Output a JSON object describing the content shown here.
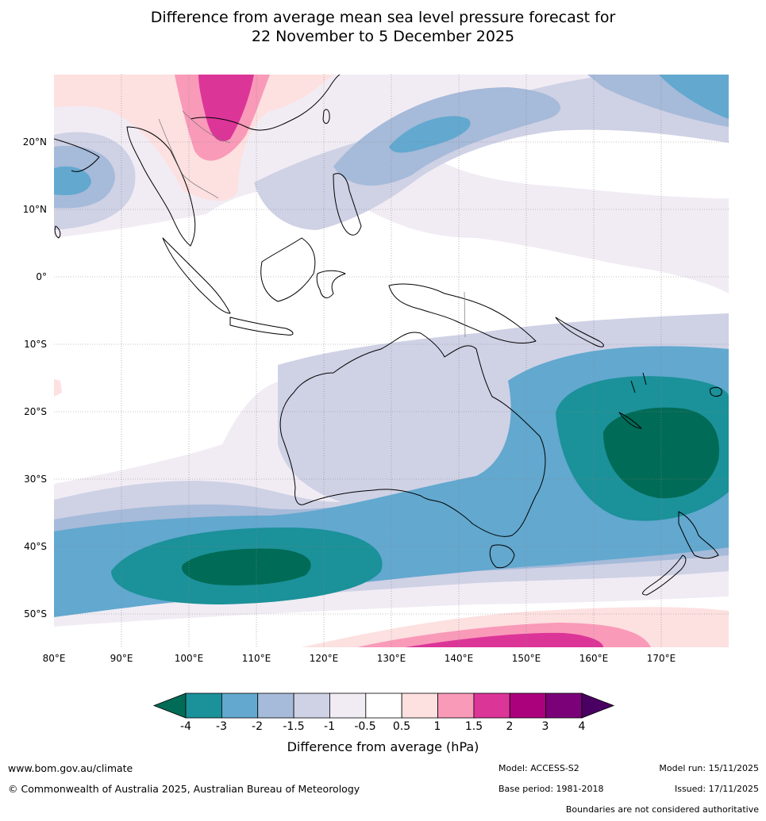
{
  "title": {
    "line1": "Difference from average mean sea level pressure forecast for",
    "line2": "22 November to 5 December 2025"
  },
  "map": {
    "region": "Indian Ocean, Maritime Continent, Australia and South-West Pacific",
    "lat_ticks": [
      "20°N",
      "10°N",
      "0°",
      "10°S",
      "20°S",
      "30°S",
      "40°S",
      "50°S"
    ],
    "lon_ticks": [
      "80°E",
      "90°E",
      "100°E",
      "110°E",
      "120°E",
      "130°E",
      "140°E",
      "150°E",
      "160°E",
      "170°E"
    ],
    "anomaly_centres": [
      {
        "name": "low-south-indian-ocean",
        "value": "below -4 hPa"
      },
      {
        "name": "low-tasman-sea",
        "value": "below -4 hPa"
      },
      {
        "name": "high-southern-china",
        "value": "above 2 hPa"
      },
      {
        "name": "high-southern-ocean",
        "value": "above 2 hPa"
      }
    ]
  },
  "colorbar": {
    "ticks": [
      "-4",
      "-3",
      "-2",
      "-1.5",
      "-1",
      "-0.5",
      "0.5",
      "1",
      "1.5",
      "2",
      "3",
      "4"
    ],
    "colors": [
      "#006b56",
      "#1b9199",
      "#62a8cf",
      "#a6bad9",
      "#cfd1e5",
      "#f1ecf4",
      "#ffffff",
      "#fde0e0",
      "#f99ab9",
      "#dc3598",
      "#ac017d",
      "#7a0177",
      "#4a0062"
    ],
    "label": "Difference from average (hPa)"
  },
  "footer": {
    "website": "www.bom.gov.au/climate",
    "copyright": "© Commonwealth of Australia 2025, Australian Bureau of Meteorology",
    "model": "Model: ACCESS-S2",
    "base_period": "Base period: 1981-2018",
    "model_run": "Model run: 15/11/2025",
    "issued": "Issued: 17/11/2025",
    "disclaimer": "Boundaries are not considered authoritative"
  }
}
